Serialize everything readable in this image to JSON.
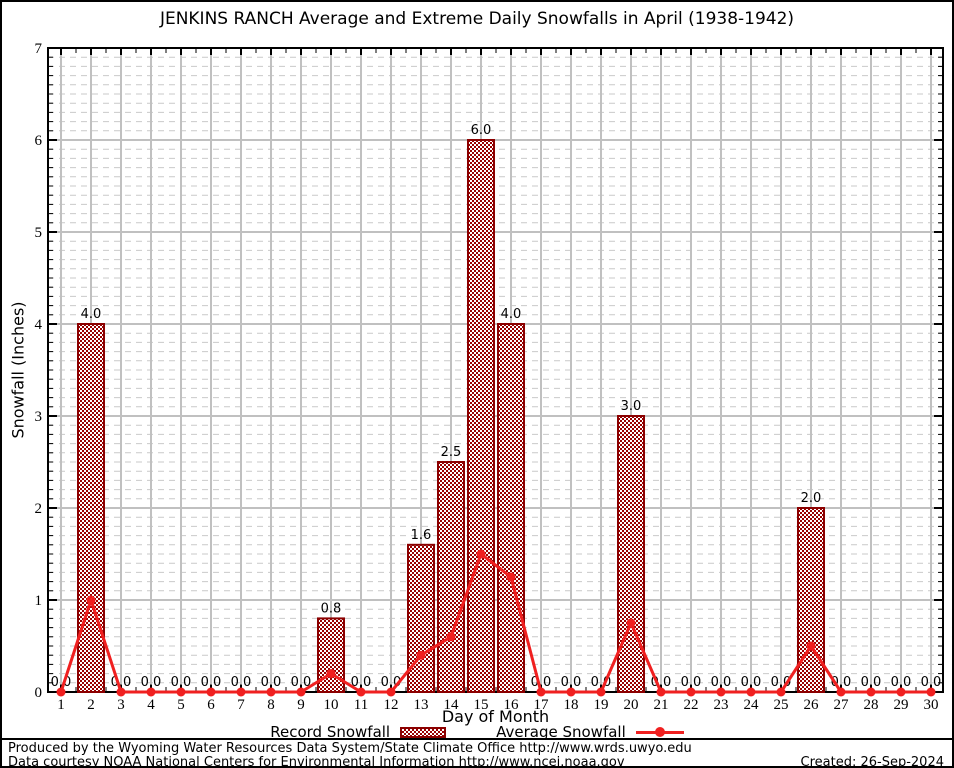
{
  "title": "JENKINS RANCH Average and Extreme Daily Snowfalls in April (1938-1942)",
  "chart_data": {
    "type": "bar",
    "x": [
      1,
      2,
      3,
      4,
      5,
      6,
      7,
      8,
      9,
      10,
      11,
      12,
      13,
      14,
      15,
      16,
      17,
      18,
      19,
      20,
      21,
      22,
      23,
      24,
      25,
      26,
      27,
      28,
      29,
      30
    ],
    "series": [
      {
        "name": "Record Snowfall",
        "type": "bar",
        "values": [
          0.0,
          4.0,
          0.0,
          0.0,
          0.0,
          0.0,
          0.0,
          0.0,
          0.0,
          0.8,
          0.0,
          0.0,
          1.6,
          2.5,
          6.0,
          4.0,
          0.0,
          0.0,
          0.0,
          3.0,
          0.0,
          0.0,
          0.0,
          0.0,
          0.0,
          2.0,
          0.0,
          0.0,
          0.0,
          0.0
        ]
      },
      {
        "name": "Average Snowfall",
        "type": "line",
        "values": [
          0.0,
          1.0,
          0.0,
          0.0,
          0.0,
          0.0,
          0.0,
          0.0,
          0.0,
          0.2,
          0.0,
          0.0,
          0.4,
          0.6,
          1.5,
          1.25,
          0.0,
          0.0,
          0.0,
          0.75,
          0.0,
          0.0,
          0.0,
          0.0,
          0.0,
          0.5,
          0.0,
          0.0,
          0.0,
          0.0
        ]
      }
    ],
    "title": "JENKINS RANCH Average and Extreme Daily Snowfalls in April (1938-1942)",
    "xlabel": "Day of Month",
    "ylabel": "Snowfall (Inches)",
    "ylim": [
      0,
      7
    ],
    "ytick_step": 1,
    "minor_ytick_step": 0.1,
    "grid": "major-solid, minor-dashed",
    "legend_position": "bottom",
    "bar_label_decimals": 1
  },
  "colors": {
    "bar_fill": "#990000",
    "bar_edge": "#8b0000",
    "line": "#f02020",
    "grid_major": "#c0c0c0",
    "grid_minor": "#c9c9c9",
    "text": "#000000"
  },
  "footer": {
    "line1": "Produced by the Wyoming Water Resources Data System/State Climate Office http://www.wrds.uwyo.edu",
    "line2": "Data courtesy NOAA National Centers for Environmental Information http://www.ncei.noaa.gov",
    "created": "Created: 26-Sep-2024"
  }
}
